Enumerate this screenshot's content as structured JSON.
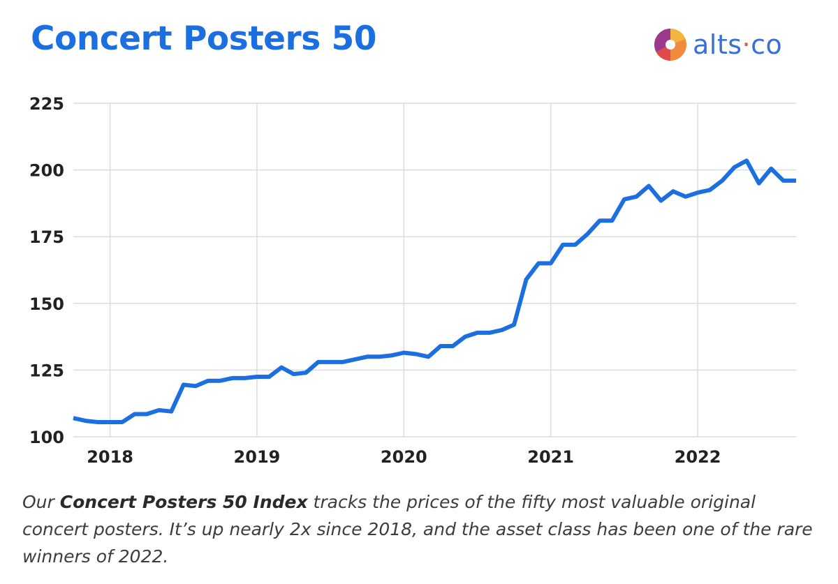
{
  "header": {
    "title": "Concert Posters 50",
    "brand_name": "alts",
    "brand_dot": "·",
    "brand_suffix": "co",
    "brand_icon": "pie-chart-logo-icon"
  },
  "caption": {
    "prefix": "Our ",
    "bold": "Concert Posters 50 Index",
    "rest": " tracks the prices of the fifty most valuable original concert posters. It’s up nearly 2x since 2018, and the asset class has been one of the rare winners of 2022."
  },
  "colors": {
    "title": "#1b6fe0",
    "line": "#1b6fe0",
    "brand_text": "#3a6fd6",
    "brand_dot": "#e4534f",
    "grid": "#dcdcdc",
    "axis_text": "#222222",
    "caption": "#3c3c3c"
  },
  "chart_data": {
    "type": "line",
    "title": "",
    "xlabel": "",
    "ylabel": "",
    "ylim": [
      100,
      225
    ],
    "xlim": [
      2017.75,
      2022.67
    ],
    "yticks": [
      "100",
      "125",
      "150",
      "175",
      "200",
      "225"
    ],
    "xticks": [
      "2018",
      "2019",
      "2020",
      "2021",
      "2022"
    ],
    "grid": true,
    "legend": "none",
    "series": [
      {
        "x": [
          2017.75,
          2017.833,
          2017.917,
          2018.0,
          2018.083,
          2018.167,
          2018.25,
          2018.333,
          2018.417,
          2018.5,
          2018.583,
          2018.667,
          2018.75,
          2018.833,
          2018.917,
          2019.0,
          2019.083,
          2019.167,
          2019.25,
          2019.333,
          2019.417,
          2019.5,
          2019.583,
          2019.667,
          2019.75,
          2019.833,
          2019.917,
          2020.0,
          2020.083,
          2020.167,
          2020.25,
          2020.333,
          2020.417,
          2020.5,
          2020.583,
          2020.667,
          2020.75,
          2020.833,
          2020.917,
          2021.0,
          2021.083,
          2021.167,
          2021.25,
          2021.333,
          2021.417,
          2021.5,
          2021.583,
          2021.667,
          2021.75,
          2021.833,
          2021.917,
          2022.0,
          2022.083,
          2022.167,
          2022.25,
          2022.333,
          2022.417,
          2022.5,
          2022.583,
          2022.67
        ],
        "values": [
          107,
          106,
          105.5,
          105.5,
          105.5,
          108.5,
          108.5,
          110,
          109.5,
          119.5,
          119,
          121,
          121,
          122,
          122,
          122.5,
          122.5,
          126,
          123.5,
          124,
          128,
          128,
          128,
          129,
          130,
          130,
          130.5,
          131.5,
          131,
          130,
          134,
          134,
          137.5,
          139,
          139,
          140,
          142,
          159,
          165,
          165,
          172,
          172,
          176,
          181,
          181,
          189,
          190,
          194,
          188.5,
          192,
          190,
          191.5,
          192.5,
          196,
          201,
          203.5,
          195,
          200.5,
          196,
          196
        ]
      }
    ]
  }
}
